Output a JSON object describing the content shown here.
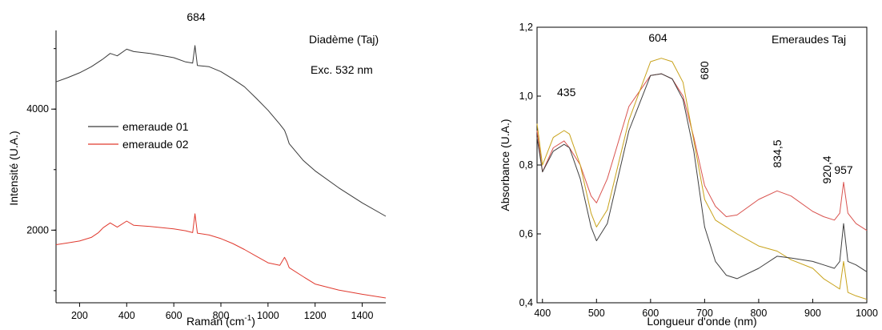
{
  "chart_data": [
    {
      "type": "line",
      "xlabel": "Raman (cm",
      "xlabel_sup": "-1",
      "xlabel_end": ")",
      "ylabel": "Intensité (U.A.)",
      "xlim": [
        100,
        1500
      ],
      "ylim": [
        800,
        5300
      ],
      "xticks": [
        200,
        400,
        600,
        800,
        1000,
        1200,
        1400
      ],
      "yticks": [
        2000,
        4000
      ],
      "grid": false,
      "legend_position": "middle-left",
      "annotations": [
        {
          "text": "684",
          "x": 684,
          "y": 5000
        },
        {
          "text": "Diadème (Taj)"
        },
        {
          "text": "Exc. 532 nm"
        }
      ],
      "series": [
        {
          "name": "emeraude 01",
          "color": "#3a3a3a",
          "x": [
            100,
            150,
            200,
            250,
            300,
            330,
            360,
            400,
            430,
            500,
            600,
            650,
            680,
            690,
            700,
            750,
            800,
            850,
            900,
            950,
            1000,
            1050,
            1070,
            1080,
            1090,
            1150,
            1200,
            1300,
            1400,
            1500
          ],
          "y": [
            4450,
            4520,
            4600,
            4700,
            4830,
            4920,
            4880,
            4990,
            4950,
            4920,
            4850,
            4780,
            4760,
            5050,
            4720,
            4700,
            4620,
            4500,
            4370,
            4180,
            3980,
            3750,
            3650,
            3550,
            3430,
            3150,
            2980,
            2700,
            2450,
            2230
          ]
        },
        {
          "name": "emeraude 02",
          "color": "#e03a2f",
          "x": [
            100,
            150,
            200,
            250,
            280,
            300,
            330,
            360,
            400,
            430,
            500,
            600,
            650,
            680,
            690,
            700,
            750,
            800,
            850,
            900,
            950,
            1000,
            1050,
            1070,
            1080,
            1090,
            1150,
            1200,
            1300,
            1400,
            1500
          ],
          "y": [
            1760,
            1790,
            1820,
            1880,
            1960,
            2040,
            2120,
            2050,
            2150,
            2080,
            2060,
            2020,
            1990,
            1960,
            2270,
            1950,
            1920,
            1860,
            1780,
            1680,
            1570,
            1460,
            1420,
            1550,
            1480,
            1380,
            1230,
            1110,
            1010,
            940,
            880
          ]
        }
      ]
    },
    {
      "type": "line",
      "title": "Emeraudes Taj",
      "xlabel": "Longueur d'onde (nm)",
      "ylabel": "Absorbance (U.A.)",
      "xlim": [
        390,
        1000
      ],
      "ylim": [
        0.4,
        1.2
      ],
      "xticks": [
        400,
        500,
        600,
        700,
        800,
        900,
        1000
      ],
      "yticks": [
        "0,4",
        "0,6",
        "0,8",
        "1,0",
        "1,2"
      ],
      "ytick_values": [
        0.4,
        0.6,
        0.8,
        1.0,
        1.2
      ],
      "grid": false,
      "annotations": [
        {
          "text": "435",
          "x": 435,
          "y": 1.0
        },
        {
          "text": "604",
          "x": 604,
          "y": 1.13
        },
        {
          "text": "680",
          "x": 680,
          "y": 1.06
        },
        {
          "text": "834,5",
          "x": 834.5,
          "y": 0.78
        },
        {
          "text": "920,4",
          "x": 920.4,
          "y": 0.73
        },
        {
          "text": "957",
          "x": 957,
          "y": 0.77
        }
      ],
      "series": [
        {
          "color": "#d9534f",
          "x": [
            390,
            400,
            420,
            440,
            450,
            470,
            490,
            500,
            520,
            560,
            600,
            620,
            640,
            660,
            680,
            700,
            720,
            740,
            760,
            800,
            834,
            860,
            900,
            920,
            940,
            950,
            957,
            965,
            980,
            1000
          ],
          "y": [
            0.9,
            0.78,
            0.85,
            0.87,
            0.85,
            0.8,
            0.71,
            0.69,
            0.76,
            0.97,
            1.06,
            1.065,
            1.05,
            1.0,
            0.88,
            0.74,
            0.68,
            0.65,
            0.655,
            0.7,
            0.725,
            0.71,
            0.665,
            0.65,
            0.64,
            0.66,
            0.75,
            0.66,
            0.63,
            0.61
          ]
        },
        {
          "color": "#c8a21a",
          "x": [
            390,
            400,
            420,
            440,
            450,
            470,
            490,
            500,
            520,
            560,
            600,
            620,
            640,
            660,
            680,
            700,
            720,
            740,
            760,
            800,
            834,
            860,
            900,
            920,
            940,
            950,
            957,
            965,
            980,
            1000
          ],
          "y": [
            0.92,
            0.8,
            0.88,
            0.9,
            0.89,
            0.8,
            0.66,
            0.62,
            0.67,
            0.93,
            1.1,
            1.11,
            1.1,
            1.04,
            0.87,
            0.7,
            0.64,
            0.62,
            0.6,
            0.565,
            0.55,
            0.525,
            0.5,
            0.47,
            0.45,
            0.44,
            0.52,
            0.43,
            0.42,
            0.41
          ]
        },
        {
          "color": "#404040",
          "x": [
            390,
            400,
            420,
            440,
            450,
            470,
            490,
            500,
            520,
            560,
            600,
            620,
            640,
            660,
            680,
            700,
            720,
            740,
            760,
            800,
            834,
            860,
            900,
            920,
            940,
            950,
            957,
            965,
            980,
            1000
          ],
          "y": [
            0.88,
            0.78,
            0.84,
            0.86,
            0.85,
            0.76,
            0.62,
            0.58,
            0.63,
            0.9,
            1.06,
            1.065,
            1.05,
            0.99,
            0.84,
            0.62,
            0.52,
            0.48,
            0.47,
            0.5,
            0.535,
            0.53,
            0.52,
            0.51,
            0.5,
            0.52,
            0.63,
            0.52,
            0.51,
            0.49
          ]
        }
      ]
    }
  ]
}
